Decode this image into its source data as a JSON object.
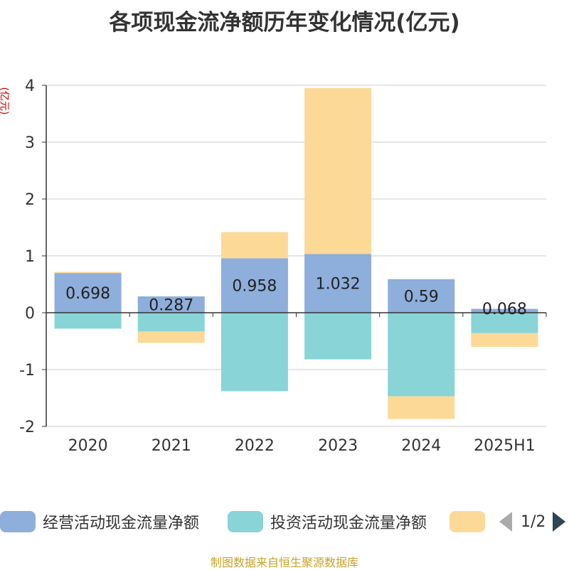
{
  "title": "各项现金流净额历年变化情况(亿元)",
  "unit_label": "(亿元)",
  "source": "制图数据来自恒生聚源数据库",
  "legend": {
    "items": [
      {
        "label": "经营活动现金流量净额",
        "color": "#8eaedb"
      },
      {
        "label": "投资活动现金流量净额",
        "color": "#88d4d6"
      },
      {
        "label": "",
        "color": "#fdd998"
      }
    ],
    "page": "1/2"
  },
  "chart_data": {
    "type": "bar",
    "stacked": true,
    "categories": [
      "2020",
      "2021",
      "2022",
      "2023",
      "2024",
      "2025H1"
    ],
    "ylim": [
      -2,
      4
    ],
    "yticks": [
      "-2",
      "-1",
      "0",
      "1",
      "2",
      "3",
      "4"
    ],
    "grid": true,
    "legend_position": "bottom",
    "series": [
      {
        "name": "经营活动现金流量净额",
        "color": "#8eaedb",
        "values": [
          0.698,
          0.287,
          0.958,
          1.032,
          0.59,
          0.068
        ],
        "labels": [
          "0.698",
          "0.287",
          "0.958",
          "1.032",
          "0.59",
          "0.068"
        ]
      },
      {
        "name": "投资活动现金流量净额",
        "color": "#88d4d6",
        "values": [
          -0.28,
          -0.33,
          -1.38,
          -0.82,
          -1.47,
          -0.36
        ]
      },
      {
        "color": "#fdd998",
        "values": [
          0.02,
          -0.2,
          0.46,
          2.92,
          -0.4,
          -0.24
        ]
      }
    ]
  }
}
